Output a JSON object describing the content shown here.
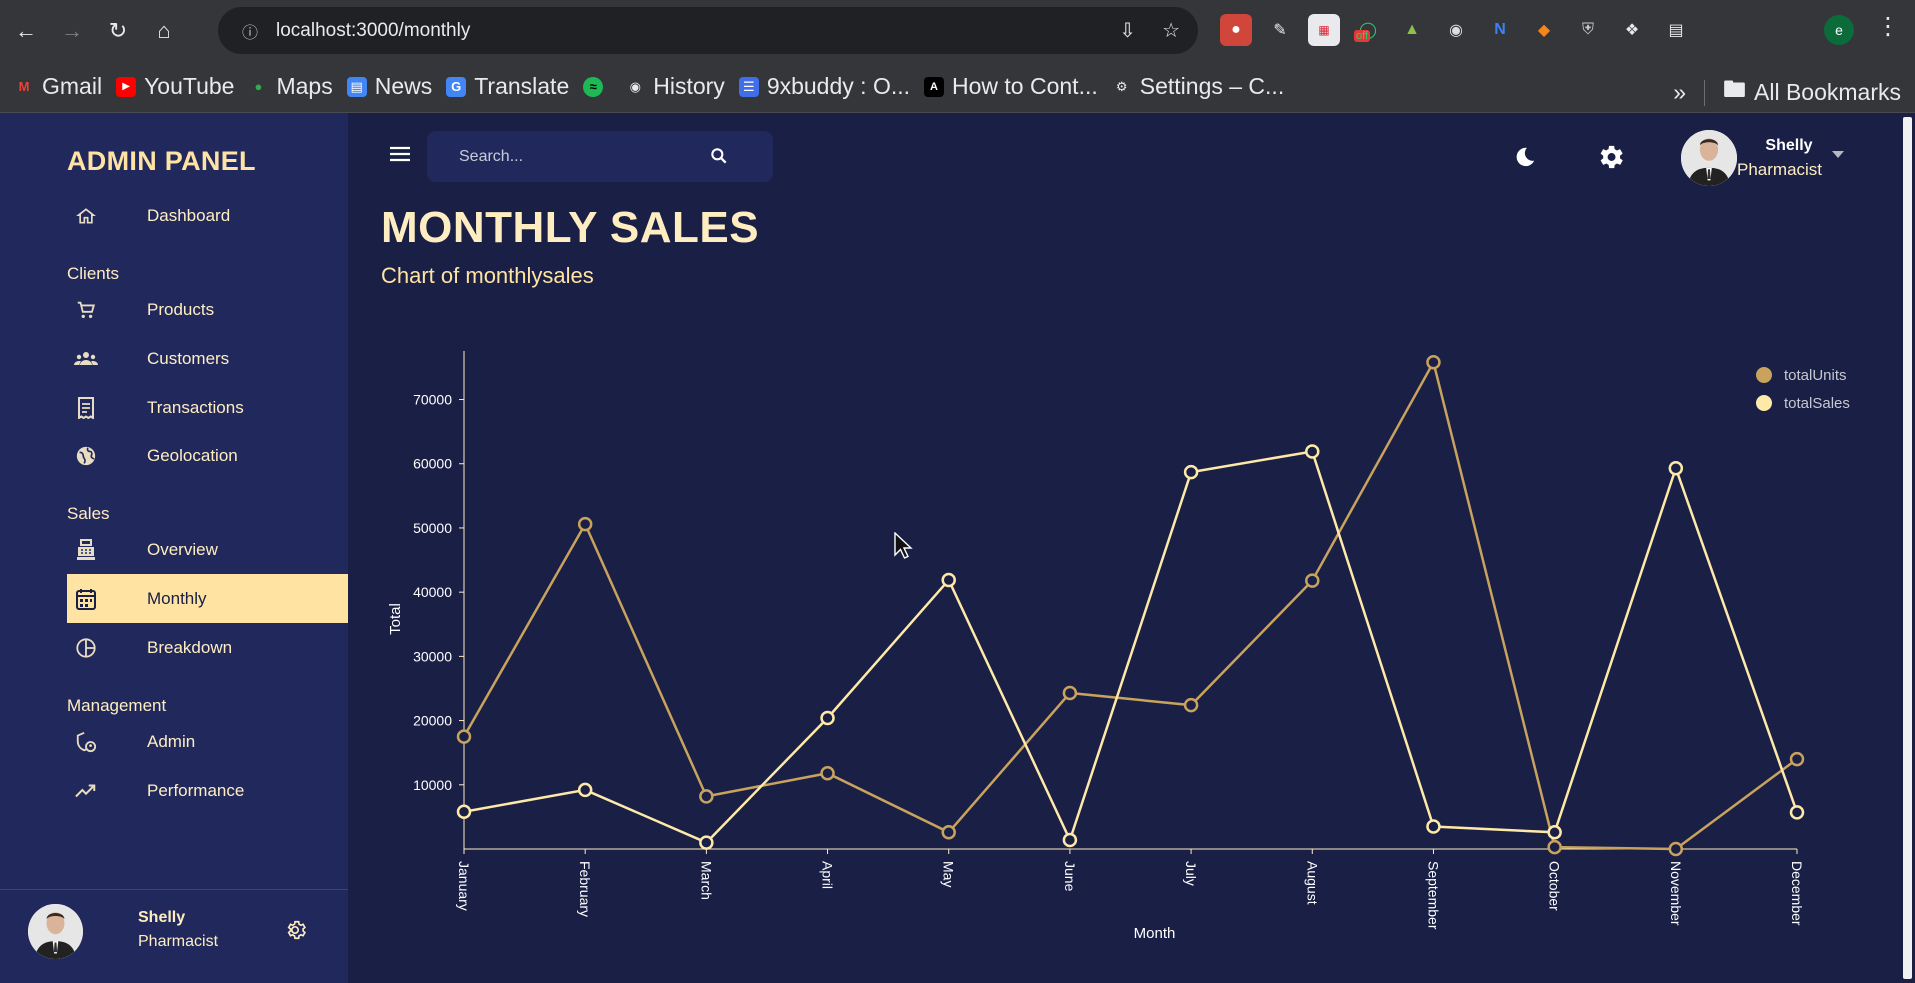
{
  "browser": {
    "url": "localhost:3000/monthly",
    "bookmarks": [
      "Gmail",
      "YouTube",
      "Maps",
      "News",
      "Translate",
      "",
      "History",
      "9xbuddy : O...",
      "How to Cont...",
      "Settings – C..."
    ],
    "all_bookmarks": "All Bookmarks",
    "profile_initial": "e",
    "ext_badge": "off"
  },
  "sidebar": {
    "brand": "ADMIN PANEL",
    "items": [
      {
        "label": "Dashboard",
        "icon": "home-icon"
      },
      {
        "section": "Clients"
      },
      {
        "label": "Products",
        "icon": "cart-icon"
      },
      {
        "label": "Customers",
        "icon": "group-icon"
      },
      {
        "label": "Transactions",
        "icon": "receipt-icon"
      },
      {
        "label": "Geolocation",
        "icon": "globe-icon"
      },
      {
        "section": "Sales"
      },
      {
        "label": "Overview",
        "icon": "point-of-sale-icon"
      },
      {
        "label": "Monthly",
        "icon": "calendar-icon",
        "active": true
      },
      {
        "label": "Breakdown",
        "icon": "pie-chart-icon"
      },
      {
        "section": "Management"
      },
      {
        "label": "Admin",
        "icon": "admin-icon"
      },
      {
        "label": "Performance",
        "icon": "trending-up-icon"
      }
    ],
    "footer": {
      "name": "Shelly",
      "role": "Pharmacist"
    }
  },
  "topbar": {
    "search_placeholder": "Search...",
    "user_name": "Shelly",
    "user_role": "Pharmacist"
  },
  "page": {
    "title": "MONTHLY SALES",
    "subtitle": "Chart of monthlysales"
  },
  "colors": {
    "accent": "#ffe3a3",
    "sidebar_bg": "#21295c",
    "main_bg": "#191f45",
    "total_units": "#c9a35d",
    "total_sales": "#ffe9a8"
  },
  "chart_data": {
    "type": "line",
    "categories": [
      "January",
      "February",
      "March",
      "April",
      "May",
      "June",
      "July",
      "August",
      "September",
      "October",
      "November",
      "December"
    ],
    "series": [
      {
        "name": "totalUnits",
        "values": [
          17500,
          50600,
          8200,
          11800,
          2600,
          24300,
          22400,
          41800,
          75800,
          300,
          0,
          14000
        ]
      },
      {
        "name": "totalSales",
        "values": [
          5800,
          9200,
          1000,
          20400,
          41900,
          1400,
          58700,
          61900,
          3500,
          2600,
          59300,
          5700
        ]
      }
    ],
    "xlabel": "Month",
    "ylabel": "Total",
    "yticks": [
      10000,
      20000,
      30000,
      40000,
      50000,
      60000,
      70000
    ],
    "ylim": [
      0,
      76000
    ],
    "legend": "top-right",
    "grid": false
  }
}
